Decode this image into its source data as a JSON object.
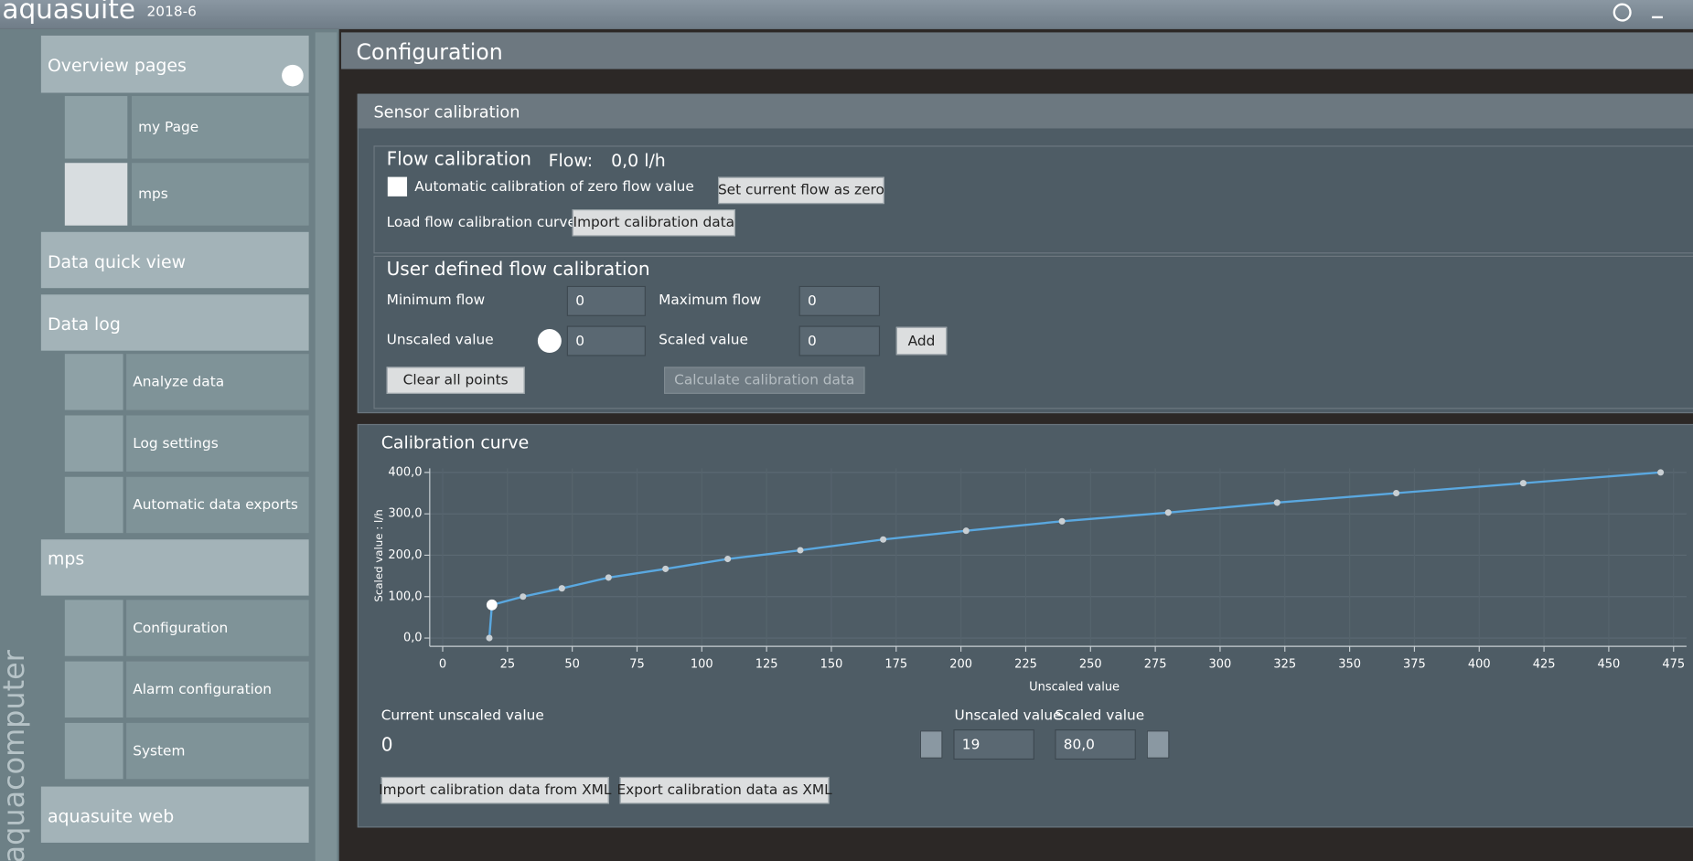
{
  "app": {
    "name": "aquasuite",
    "version": "2018-6",
    "brand": "aquacomputer"
  },
  "sidebar": {
    "overview_pages": "Overview pages",
    "pages": [
      "my Page",
      "mps"
    ],
    "data_quick_view": "Data quick view",
    "data_log": "Data log",
    "data_log_items": [
      "Analyze data",
      "Log settings",
      "Automatic data exports"
    ],
    "device": "mps",
    "device_items": [
      "Configuration",
      "Alarm configuration",
      "System"
    ],
    "web": "aquasuite web"
  },
  "page_title": "Configuration",
  "sensor_calibration": {
    "title": "Sensor calibration",
    "flow_calibration": "Flow calibration",
    "flow_label": "Flow:",
    "flow_value": "0,0 l/h",
    "auto_zero": "Automatic calibration of zero flow value",
    "set_zero": "Set current flow as zero",
    "load_curve": "Load flow calibration curve",
    "import": "Import calibration data"
  },
  "user_defined": {
    "title": "User defined flow calibration",
    "min_flow": "Minimum flow",
    "min_flow_value": "0",
    "max_flow": "Maximum flow",
    "max_flow_value": "0",
    "unscaled": "Unscaled value",
    "unscaled_input": "0",
    "scaled": "Scaled value",
    "scaled_input": "0",
    "add": "Add",
    "clear": "Clear all points",
    "calculate": "Calculate calibration data"
  },
  "calibration_curve": {
    "current_unscaled_label": "Current unscaled value",
    "current_unscaled_value": "0",
    "point_unscaled_label": "Unscaled value",
    "point_unscaled": "19",
    "point_scaled_label": "Scaled value",
    "point_scaled": "80,0",
    "import_xml": "Import calibration data from XML",
    "export_xml": "Export calibration data as XML"
  },
  "chart_data": {
    "type": "line",
    "title": "Calibration curve",
    "x_label": "Unscaled value",
    "y_label": "Scaled value : l/h",
    "color": "#5aa8e0",
    "x": [
      18,
      19,
      31,
      46,
      64,
      86,
      110,
      138,
      170,
      202,
      239,
      280,
      322,
      368,
      417,
      470
    ],
    "values": [
      0,
      80,
      100,
      120,
      146,
      167,
      191,
      212,
      238,
      259,
      282,
      303,
      327,
      350,
      374,
      400
    ],
    "xlim": [
      -5,
      480
    ],
    "ylim": [
      -20,
      410
    ],
    "xticks": [
      0,
      25,
      50,
      75,
      100,
      125,
      150,
      175,
      200,
      225,
      250,
      275,
      300,
      325,
      350,
      375,
      400,
      425,
      450,
      475
    ],
    "yticks": [
      {
        "value": 0,
        "label": "0,0"
      },
      {
        "value": 100,
        "label": "100,0"
      },
      {
        "value": 200,
        "label": "200,0"
      },
      {
        "value": 300,
        "label": "300,0"
      },
      {
        "value": 400,
        "label": "400,0"
      }
    ],
    "grid": true
  }
}
